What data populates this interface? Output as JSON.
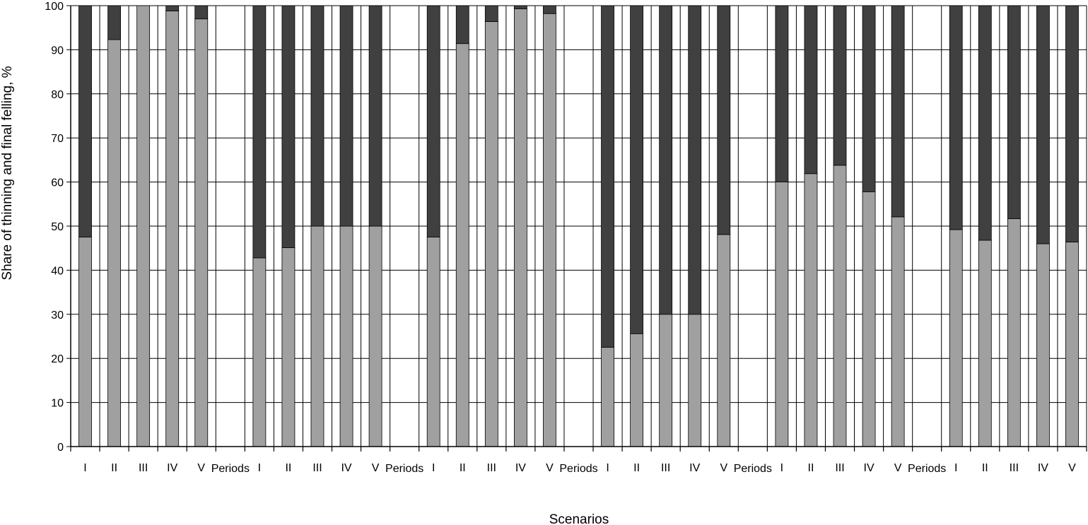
{
  "chart_data": {
    "type": "bar",
    "stacked": true,
    "title": "",
    "xlabel": "Scenarios",
    "ylabel": "Share of thinning and final felling, %",
    "ylim": [
      0,
      100
    ],
    "yticks": [
      0,
      10,
      20,
      30,
      40,
      50,
      60,
      70,
      80,
      90,
      100
    ],
    "grid": true,
    "legend": "none",
    "categories": [
      "I",
      "II",
      "III",
      "IV",
      "V",
      "Periods",
      "I",
      "II",
      "III",
      "IV",
      "V",
      "Periods",
      "I",
      "II",
      "III",
      "IV",
      "V",
      "Periods",
      "I",
      "II",
      "III",
      "IV",
      "V",
      "Periods",
      "I",
      "II",
      "III",
      "IV",
      "V",
      "Periods",
      "I",
      "II",
      "III",
      "IV",
      "V"
    ],
    "series": [
      {
        "color": "#a0a0a0",
        "values": [
          47.5,
          92.3,
          100,
          98.8,
          97,
          null,
          42.8,
          45.1,
          50,
          50,
          50,
          null,
          47.5,
          91.4,
          96.4,
          99.3,
          98.2,
          null,
          22.5,
          25.6,
          30,
          30,
          48.1,
          null,
          60,
          61.9,
          63.8,
          57.8,
          52.1,
          null,
          49.2,
          46.8,
          51.7,
          46,
          46.4
        ]
      },
      {
        "color": "#404040",
        "values": [
          52.5,
          7.7,
          0,
          1.2,
          3,
          null,
          57.2,
          54.9,
          50,
          50,
          50,
          null,
          52.5,
          8.6,
          3.6,
          0.7,
          1.8,
          null,
          77.5,
          74.4,
          70,
          70,
          51.9,
          null,
          40,
          38.1,
          36.2,
          42.2,
          47.9,
          null,
          50.8,
          53.2,
          48.3,
          54,
          53.6
        ]
      }
    ]
  }
}
